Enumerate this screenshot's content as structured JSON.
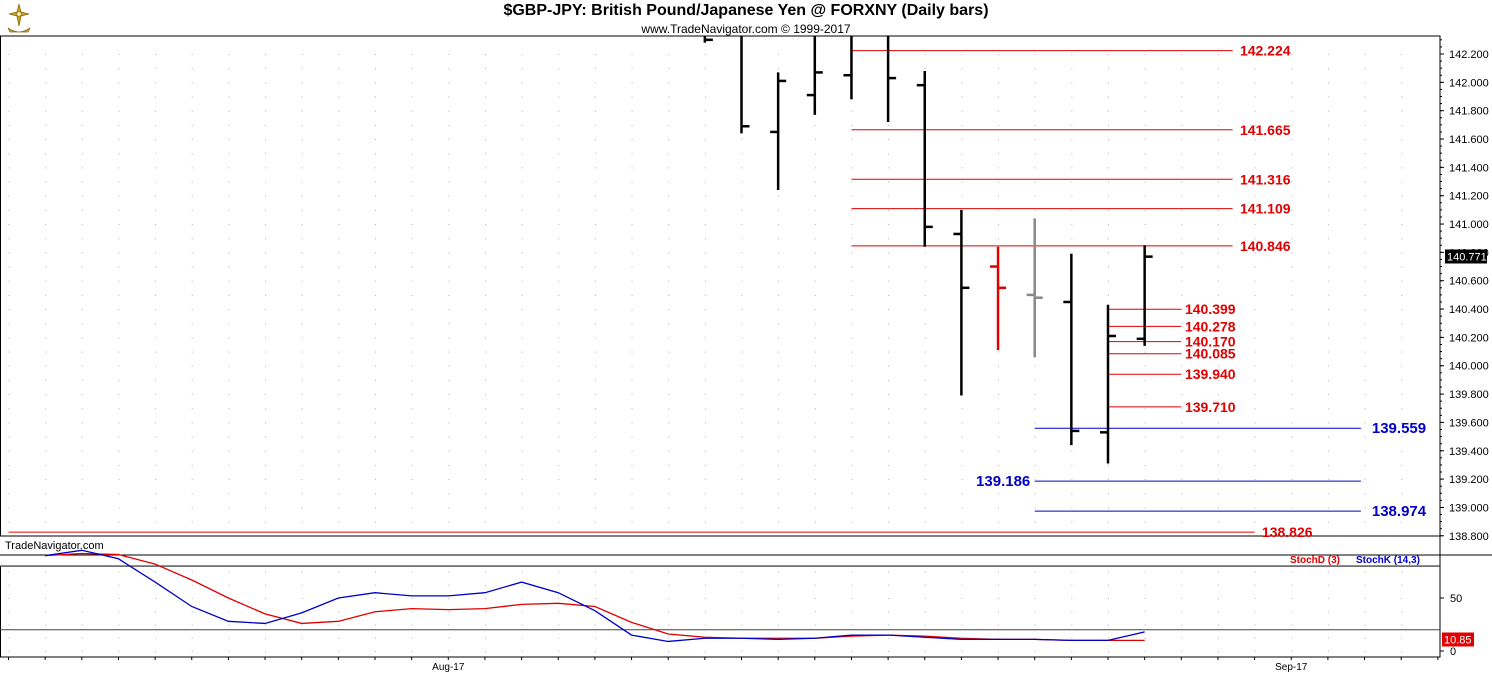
{
  "header": {
    "title": "$GBP-JPY:  British Pound/Japanese Yen @ FORXNY  (Daily bars)",
    "subtitle": "www.TradeNavigator.com © 1999-2017"
  },
  "watermark": "TradeNavigator.com",
  "colors": {
    "bar": "#000000",
    "bar_red": "#e00000",
    "bar_gray": "#888888",
    "level_red": "#e00000",
    "level_blue": "#0000c8",
    "stoch_d": "#e00000",
    "stoch_k": "#0000c8",
    "last_price_bg": "#000000",
    "stoch_value_bg": "#e00000"
  },
  "chart_data": [
    {
      "type": "ohlc",
      "title": "$GBP-JPY:  British Pound/Japanese Yen @ FORXNY  (Daily bars)",
      "ylim": [
        138.7,
        142.35
      ],
      "y_ticks": [
        "142.200",
        "142.000",
        "141.800",
        "141.600",
        "141.400",
        "141.200",
        "141.000",
        "140.800",
        "140.600",
        "140.400",
        "140.200",
        "140.000",
        "139.800",
        "139.600",
        "139.400",
        "139.200",
        "139.000",
        "138.800"
      ],
      "x_ticks": [
        {
          "label": "Aug-17",
          "bar": 12
        },
        {
          "label": "Sep-17",
          "bar": 35
        }
      ],
      "last_price": "140.771",
      "bars": [
        {
          "i": 19,
          "o": null,
          "h": 142.35,
          "l": 142.28,
          "c": 142.3,
          "color": "bar"
        },
        {
          "i": 20,
          "o": null,
          "h": 142.35,
          "l": 141.64,
          "c": 141.69,
          "color": "bar"
        },
        {
          "i": 21,
          "o": 141.65,
          "h": 142.07,
          "l": 141.24,
          "c": 142.01,
          "color": "bar"
        },
        {
          "i": 22,
          "o": 141.91,
          "h": 142.35,
          "l": 141.77,
          "c": 142.07,
          "color": "bar"
        },
        {
          "i": 23,
          "o": 142.05,
          "h": 142.35,
          "l": 141.88,
          "c": null,
          "color": "bar"
        },
        {
          "i": 24,
          "o": null,
          "h": 142.33,
          "l": 141.72,
          "c": 142.03,
          "color": "bar"
        },
        {
          "i": 25,
          "o": 141.98,
          "h": 142.08,
          "l": 140.84,
          "c": 140.98,
          "color": "bar"
        },
        {
          "i": 26,
          "o": 140.93,
          "h": 141.1,
          "l": 139.79,
          "c": 140.55,
          "color": "bar"
        },
        {
          "i": 27,
          "o": 140.7,
          "h": 140.84,
          "l": 140.11,
          "c": 140.55,
          "color": "bar_red"
        },
        {
          "i": 28,
          "o": 140.5,
          "h": 141.04,
          "l": 140.06,
          "c": 140.48,
          "color": "bar_gray"
        },
        {
          "i": 29,
          "o": 140.45,
          "h": 140.79,
          "l": 139.44,
          "c": 139.54,
          "color": "bar"
        },
        {
          "i": 30,
          "o": 139.53,
          "h": 140.43,
          "l": 139.31,
          "c": 140.21,
          "color": "bar"
        },
        {
          "i": 31,
          "o": 140.19,
          "h": 140.85,
          "l": 140.14,
          "c": 140.77,
          "color": "bar"
        }
      ],
      "levels": [
        {
          "value": 142.224,
          "label": "142.224",
          "color": "level_red",
          "x0": 23.0,
          "x1": 33.4,
          "label_bar": 33.6
        },
        {
          "value": 141.665,
          "label": "141.665",
          "color": "level_red",
          "x0": 23.0,
          "x1": 33.4,
          "label_bar": 33.6
        },
        {
          "value": 141.316,
          "label": "141.316",
          "color": "level_red",
          "x0": 23.0,
          "x1": 33.4,
          "label_bar": 33.6
        },
        {
          "value": 141.109,
          "label": "141.109",
          "color": "level_red",
          "x0": 23.0,
          "x1": 33.4,
          "label_bar": 33.6
        },
        {
          "value": 140.846,
          "label": "140.846",
          "color": "level_red",
          "x0": 23.0,
          "x1": 33.4,
          "label_bar": 33.6
        },
        {
          "value": 140.399,
          "label": "140.399",
          "color": "level_red",
          "x0": 30.0,
          "x1": 32.0,
          "label_bar": 32.1
        },
        {
          "value": 140.278,
          "label": "140.278",
          "color": "level_red",
          "x0": 30.0,
          "x1": 32.0,
          "label_bar": 32.1
        },
        {
          "value": 140.17,
          "label": "140.170",
          "color": "level_red",
          "x0": 30.0,
          "x1": 32.0,
          "label_bar": 32.1
        },
        {
          "value": 140.085,
          "label": "140.085",
          "color": "level_red",
          "x0": 30.0,
          "x1": 32.0,
          "label_bar": 32.1
        },
        {
          "value": 139.94,
          "label": "139.940",
          "color": "level_red",
          "x0": 30.0,
          "x1": 32.0,
          "label_bar": 32.1
        },
        {
          "value": 139.71,
          "label": "139.710",
          "color": "level_red",
          "x0": 30.0,
          "x1": 32.0,
          "label_bar": 32.1
        },
        {
          "value": 139.559,
          "label": "139.559",
          "color": "level_blue",
          "x0": 28.0,
          "x1": 36.9,
          "label_bar": 37.2
        },
        {
          "value": 139.186,
          "label": "139.186",
          "color": "level_blue",
          "x0": 28.0,
          "x1": 36.9,
          "label_bar": 26.4
        },
        {
          "value": 138.974,
          "label": "138.974",
          "color": "level_blue",
          "x0": 28.0,
          "x1": 36.9,
          "label_bar": 37.2
        },
        {
          "value": 138.826,
          "label": "138.826",
          "color": "level_red",
          "x0": 0.0,
          "x1": 34.0,
          "label_bar": 34.2
        }
      ]
    },
    {
      "type": "line",
      "ylim": [
        0,
        100
      ],
      "y_ticks": [
        "50",
        "0"
      ],
      "ref_lines": [
        80,
        20
      ],
      "last_value": "10.85",
      "series": [
        {
          "name": "StochD (3)",
          "color": "stoch_d",
          "values": [
            [
              1,
              90
            ],
            [
              2,
              92
            ],
            [
              3,
              91
            ],
            [
              4,
              82
            ],
            [
              5,
              67
            ],
            [
              6,
              50
            ],
            [
              7,
              35
            ],
            [
              8,
              26
            ],
            [
              9,
              28
            ],
            [
              10,
              37
            ],
            [
              11,
              40
            ],
            [
              12,
              39
            ],
            [
              13,
              40
            ],
            [
              14,
              44
            ],
            [
              15,
              45
            ],
            [
              16,
              42
            ],
            [
              17,
              27
            ],
            [
              18,
              16
            ],
            [
              19,
              13
            ],
            [
              20,
              12
            ],
            [
              21,
              12
            ],
            [
              22,
              12
            ],
            [
              23,
              14
            ],
            [
              24,
              15
            ],
            [
              25,
              14
            ],
            [
              26,
              12
            ],
            [
              27,
              11
            ],
            [
              28,
              11
            ],
            [
              29,
              10
            ],
            [
              30,
              10
            ],
            [
              31,
              10
            ]
          ]
        },
        {
          "name": "StochK (14,3)",
          "color": "stoch_k",
          "values": [
            [
              1,
              90
            ],
            [
              2,
              95
            ],
            [
              3,
              87
            ],
            [
              4,
              65
            ],
            [
              5,
              42
            ],
            [
              6,
              28
            ],
            [
              7,
              26
            ],
            [
              8,
              36
            ],
            [
              9,
              50
            ],
            [
              10,
              55
            ],
            [
              11,
              52
            ],
            [
              12,
              52
            ],
            [
              13,
              55
            ],
            [
              14,
              65
            ],
            [
              15,
              55
            ],
            [
              16,
              38
            ],
            [
              17,
              15
            ],
            [
              18,
              9
            ],
            [
              19,
              12
            ],
            [
              20,
              12
            ],
            [
              21,
              11
            ],
            [
              22,
              12
            ],
            [
              23,
              15
            ],
            [
              24,
              15
            ],
            [
              25,
              13
            ],
            [
              26,
              11
            ],
            [
              27,
              11
            ],
            [
              28,
              11
            ],
            [
              29,
              10
            ],
            [
              30,
              10
            ],
            [
              31,
              18
            ]
          ]
        }
      ]
    }
  ]
}
